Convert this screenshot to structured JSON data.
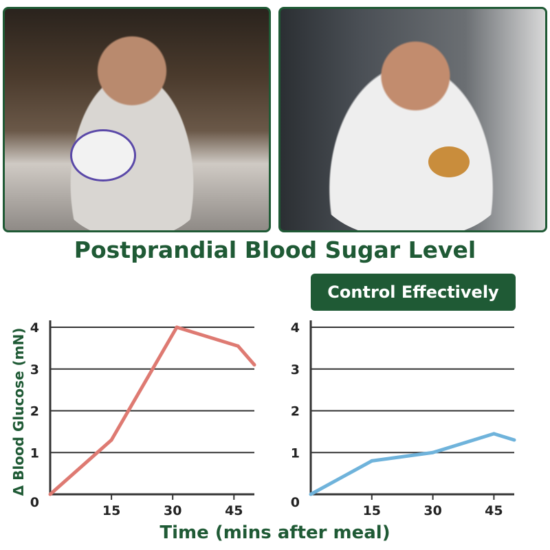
{
  "title": "Postprandial Blood Sugar Level",
  "badge": "Control Effectively",
  "colors": {
    "brand_green": "#1f5a35",
    "uncontrolled_line": "#de7a72",
    "controlled_line": "#6fb3db"
  },
  "chart_data": [
    {
      "type": "line",
      "xlabel": "Time (mins after meal)",
      "ylabel": "Δ Blood Glucose (mN)",
      "xlim": [
        0,
        50
      ],
      "ylim": [
        0,
        4
      ],
      "x_ticks": [
        "15",
        "30",
        "45"
      ],
      "y_ticks": [
        "0",
        "1",
        "2",
        "3",
        "4"
      ],
      "grid": "horizontal",
      "series": [
        {
          "color": "#de7a72",
          "x": [
            0,
            15,
            31,
            46,
            50
          ],
          "y": [
            0,
            1.3,
            4.0,
            3.55,
            3.1
          ]
        }
      ]
    },
    {
      "type": "line",
      "xlim": [
        0,
        50
      ],
      "ylim": [
        0,
        4
      ],
      "x_ticks": [
        "15",
        "30",
        "45"
      ],
      "y_ticks": [
        "0",
        "1",
        "2",
        "3",
        "4"
      ],
      "grid": "horizontal",
      "series": [
        {
          "color": "#6fb3db",
          "x": [
            0,
            15,
            30,
            45,
            50
          ],
          "y": [
            0,
            0.8,
            1.0,
            1.45,
            1.3
          ]
        }
      ]
    }
  ]
}
